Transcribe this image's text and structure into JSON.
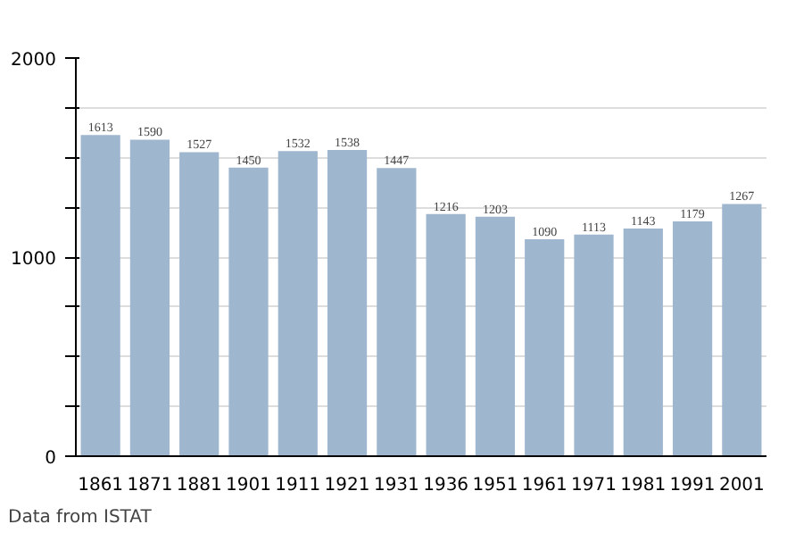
{
  "chart_data": {
    "type": "bar",
    "categories": [
      "1861",
      "1871",
      "1881",
      "1901",
      "1911",
      "1921",
      "1931",
      "1936",
      "1951",
      "1961",
      "1971",
      "1981",
      "1991",
      "2001"
    ],
    "values": [
      1613,
      1590,
      1527,
      1450,
      1532,
      1538,
      1447,
      1216,
      1203,
      1090,
      1113,
      1143,
      1179,
      1267
    ],
    "color": "#9fb6cf",
    "ylim": [
      0,
      2000
    ],
    "yticks": [
      0,
      {
        "value": 250,
        "label": null
      },
      {
        "value": 500,
        "label": null
      },
      {
        "value": 750,
        "label": null
      },
      1000,
      {
        "value": 1250,
        "label": null
      },
      {
        "value": 1500,
        "label": null
      },
      {
        "value": 1750,
        "label": null
      },
      2000
    ],
    "grid": "y",
    "data_labels": true,
    "annotations": [
      "Data from ISTAT"
    ]
  }
}
